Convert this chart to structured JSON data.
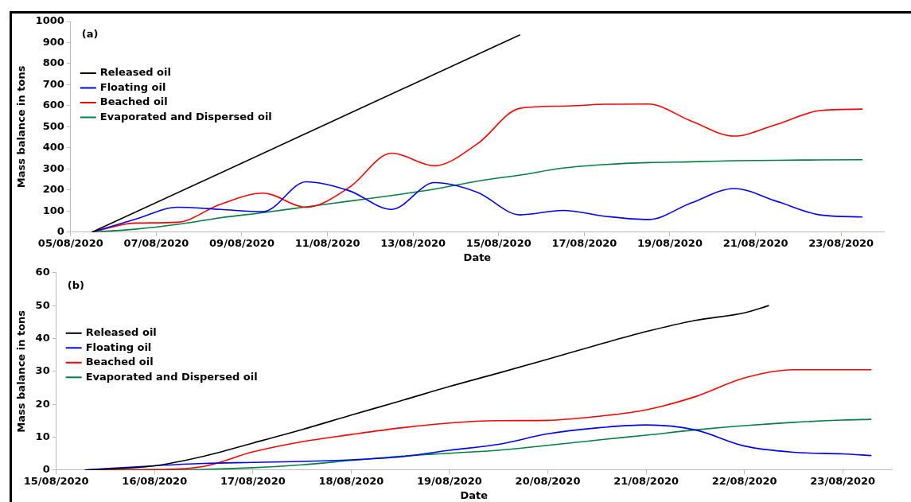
{
  "chart_data": [
    {
      "type": "line",
      "xlabel": "Date",
      "ylabel": "Mass balance in tons",
      "annotations": [
        "(a)"
      ],
      "legend": "top left",
      "xlim": [
        "2020-08-05",
        "2020-08-24"
      ],
      "ylim": [
        0,
        1000
      ],
      "yticks": [
        0,
        100,
        200,
        300,
        400,
        500,
        600,
        700,
        800,
        900,
        1000
      ],
      "xticks": [
        {
          "value": "2020-08-05",
          "label": "05/08/2020"
        },
        {
          "value": "2020-08-07",
          "label": "07/08/2020"
        },
        {
          "value": "2020-08-09",
          "label": "09/08/2020"
        },
        {
          "value": "2020-08-11",
          "label": "11/08/2020"
        },
        {
          "value": "2020-08-13",
          "label": "13/08/2020"
        },
        {
          "value": "2020-08-15",
          "label": "15/08/2020"
        },
        {
          "value": "2020-08-17",
          "label": "17/08/2020"
        },
        {
          "value": "2020-08-19",
          "label": "19/08/2020"
        },
        {
          "value": "2020-08-21",
          "label": "21/08/2020"
        },
        {
          "value": "2020-08-23",
          "label": "23/08/2020"
        }
      ],
      "x": [
        "2020-08-05T12:00",
        "2020-08-06T12:00",
        "2020-08-07T12:00",
        "2020-08-08T12:00",
        "2020-08-09T12:00",
        "2020-08-10T12:00",
        "2020-08-11T12:00",
        "2020-08-12T12:00",
        "2020-08-13T12:00",
        "2020-08-14T12:00",
        "2020-08-15T12:00",
        "2020-08-16T12:00",
        "2020-08-17T12:00",
        "2020-08-18T12:00",
        "2020-08-19T12:00",
        "2020-08-20T12:00",
        "2020-08-21T12:00",
        "2020-08-22T12:00",
        "2020-08-23T12:00"
      ],
      "series": [
        {
          "name": "Released oil",
          "color": "#000000",
          "x": [
            "2020-08-05T12:00",
            "2020-08-15T12:00"
          ],
          "values": [
            0,
            937
          ]
        },
        {
          "name": "Floating oil",
          "color": "#0000ff",
          "values": [
            0,
            61,
            118,
            108,
            97,
            239,
            197,
            108,
            235,
            189,
            82,
            103,
            75,
            60,
            139,
            207,
            146,
            82,
            72
          ]
        },
        {
          "name": "Beached oil",
          "color": "#ff0000",
          "values": [
            0,
            43,
            47,
            132,
            185,
            118,
            211,
            375,
            315,
            419,
            588,
            598,
            607,
            608,
            527,
            456,
            512,
            577,
            584
          ]
        },
        {
          "name": "Evaporated and Dispersed oil",
          "color": "#008040",
          "values": [
            0,
            14,
            37,
            68,
            93,
            120,
            147,
            174,
            204,
            242,
            271,
            304,
            321,
            330,
            334,
            339,
            341,
            343,
            344
          ]
        }
      ]
    },
    {
      "type": "line",
      "xlabel": "Date",
      "ylabel": "Mass balance in tons",
      "annotations": [
        "(b)"
      ],
      "legend": "top left",
      "xlim": [
        "2020-08-15",
        "2020-08-23T12:00"
      ],
      "ylim": [
        0,
        60
      ],
      "yticks": [
        0,
        10,
        20,
        30,
        40,
        50,
        60
      ],
      "xticks": [
        {
          "value": "2020-08-15",
          "label": "15/08/2020"
        },
        {
          "value": "2020-08-16",
          "label": "16/08/2020"
        },
        {
          "value": "2020-08-17",
          "label": "17/08/2020"
        },
        {
          "value": "2020-08-18",
          "label": "18/08/2020"
        },
        {
          "value": "2020-08-19",
          "label": "19/08/2020"
        },
        {
          "value": "2020-08-20",
          "label": "20/08/2020"
        },
        {
          "value": "2020-08-21",
          "label": "21/08/2020"
        },
        {
          "value": "2020-08-22",
          "label": "22/08/2020"
        },
        {
          "value": "2020-08-23",
          "label": "23/08/2020"
        }
      ],
      "x": [
        "2020-08-15T07:00",
        "2020-08-16T00:00",
        "2020-08-16T12:00",
        "2020-08-17T00:00",
        "2020-08-17T12:00",
        "2020-08-18T00:00",
        "2020-08-18T12:00",
        "2020-08-19T00:00",
        "2020-08-19T12:00",
        "2020-08-20T00:00",
        "2020-08-20T12:00",
        "2020-08-21T00:00",
        "2020-08-21T12:00",
        "2020-08-22T00:00",
        "2020-08-22T12:00",
        "2020-08-23T00:00",
        "2020-08-23T07:00"
      ],
      "series": [
        {
          "name": "Released oil",
          "color": "#000000",
          "x": [
            "2020-08-15T07:00",
            "2020-08-16T00:00",
            "2020-08-16T12:00",
            "2020-08-17T00:00",
            "2020-08-17T12:00",
            "2020-08-18T00:00",
            "2020-08-18T12:00",
            "2020-08-19T00:00",
            "2020-08-19T12:00",
            "2020-08-20T00:00",
            "2020-08-20T12:00",
            "2020-08-21T00:00",
            "2020-08-21T12:00",
            "2020-08-22T00:00",
            "2020-08-22T06:00"
          ],
          "values": [
            0,
            1.3,
            4.2,
            8.2,
            12.3,
            16.7,
            21,
            25.4,
            29.5,
            33.7,
            38,
            42.1,
            45.5,
            47.8,
            50
          ]
        },
        {
          "name": "Floating oil",
          "color": "#0000ff",
          "values": [
            0,
            1.3,
            2,
            2.3,
            2.6,
            3.1,
            4,
            6,
            7.8,
            11,
            12.8,
            13.7,
            12.2,
            7.3,
            5.4,
            4.9,
            4.4
          ]
        },
        {
          "name": "Beached oil",
          "color": "#ff0000",
          "values": [
            0,
            0.1,
            1.1,
            5.5,
            8.6,
            10.8,
            12.8,
            14.3,
            15,
            15.1,
            16.3,
            18.3,
            22.3,
            28,
            30.5,
            30.5,
            30.5
          ]
        },
        {
          "name": "Evaporated and Dispersed oil",
          "color": "#008040",
          "values": [
            0,
            0.1,
            0.2,
            0.7,
            1.6,
            2.9,
            4.2,
            5.1,
            6,
            7.5,
            9.1,
            10.6,
            12.2,
            13.5,
            14.5,
            15.2,
            15.4
          ]
        }
      ]
    }
  ]
}
